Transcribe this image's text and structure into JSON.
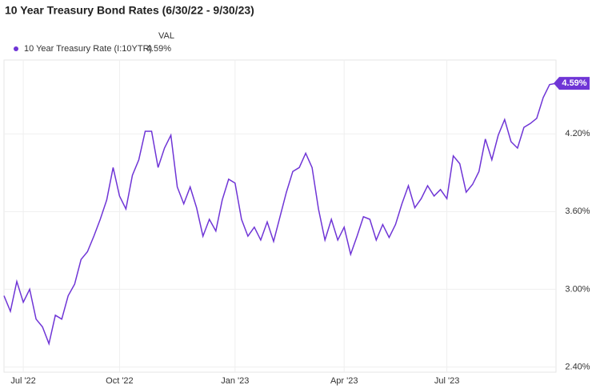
{
  "chart_data": {
    "type": "line",
    "title": "10 Year Treasury Bond Rates (6/30/22 - 9/30/23)",
    "legend_header": "VAL",
    "categories": [
      null,
      null,
      null,
      "Jul '22",
      null,
      null,
      null,
      null,
      null,
      null,
      null,
      null,
      null,
      null,
      null,
      null,
      null,
      null,
      "Oct '22",
      null,
      null,
      null,
      null,
      null,
      null,
      null,
      null,
      null,
      null,
      null,
      null,
      null,
      null,
      null,
      null,
      null,
      "Jan '23",
      null,
      null,
      null,
      null,
      null,
      null,
      null,
      null,
      null,
      null,
      null,
      null,
      null,
      null,
      null,
      null,
      "Apr '23",
      null,
      null,
      null,
      null,
      null,
      null,
      null,
      null,
      null,
      null,
      null,
      null,
      null,
      null,
      null,
      "Jul '23",
      null,
      null,
      null,
      null,
      null,
      null,
      null,
      null,
      null,
      null,
      null,
      null,
      null,
      null,
      null,
      null,
      null
    ],
    "series": [
      {
        "name": "10 Year Treasury Rate (I:10YTR)",
        "color": "#6f35d6",
        "last_label": "4.59%",
        "values": [
          2.95,
          2.83,
          3.06,
          2.9,
          3.0,
          2.77,
          2.71,
          2.58,
          2.8,
          2.77,
          2.95,
          3.04,
          3.23,
          3.29,
          3.41,
          3.54,
          3.69,
          3.94,
          3.72,
          3.62,
          3.88,
          4.0,
          4.22,
          4.22,
          3.94,
          4.09,
          4.19,
          3.79,
          3.66,
          3.79,
          3.63,
          3.41,
          3.54,
          3.45,
          3.69,
          3.85,
          3.82,
          3.54,
          3.41,
          3.48,
          3.38,
          3.52,
          3.37,
          3.56,
          3.75,
          3.91,
          3.94,
          4.05,
          3.94,
          3.62,
          3.38,
          3.54,
          3.38,
          3.48,
          3.27,
          3.41,
          3.56,
          3.54,
          3.38,
          3.5,
          3.4,
          3.5,
          3.66,
          3.8,
          3.63,
          3.7,
          3.8,
          3.72,
          3.77,
          3.7,
          4.03,
          3.97,
          3.75,
          3.81,
          3.91,
          4.16,
          4.0,
          4.19,
          4.31,
          4.14,
          4.09,
          4.25,
          4.28,
          4.32,
          4.48,
          4.58,
          4.59
        ]
      }
    ],
    "ylim": [
      2.36,
      4.77
    ],
    "yticks": [
      {
        "value": 2.4,
        "label": "2.40%"
      },
      {
        "value": 3.0,
        "label": "3.00%"
      },
      {
        "value": 3.6,
        "label": "3.60%"
      },
      {
        "value": 4.2,
        "label": "4.20%"
      }
    ],
    "grid": true
  }
}
